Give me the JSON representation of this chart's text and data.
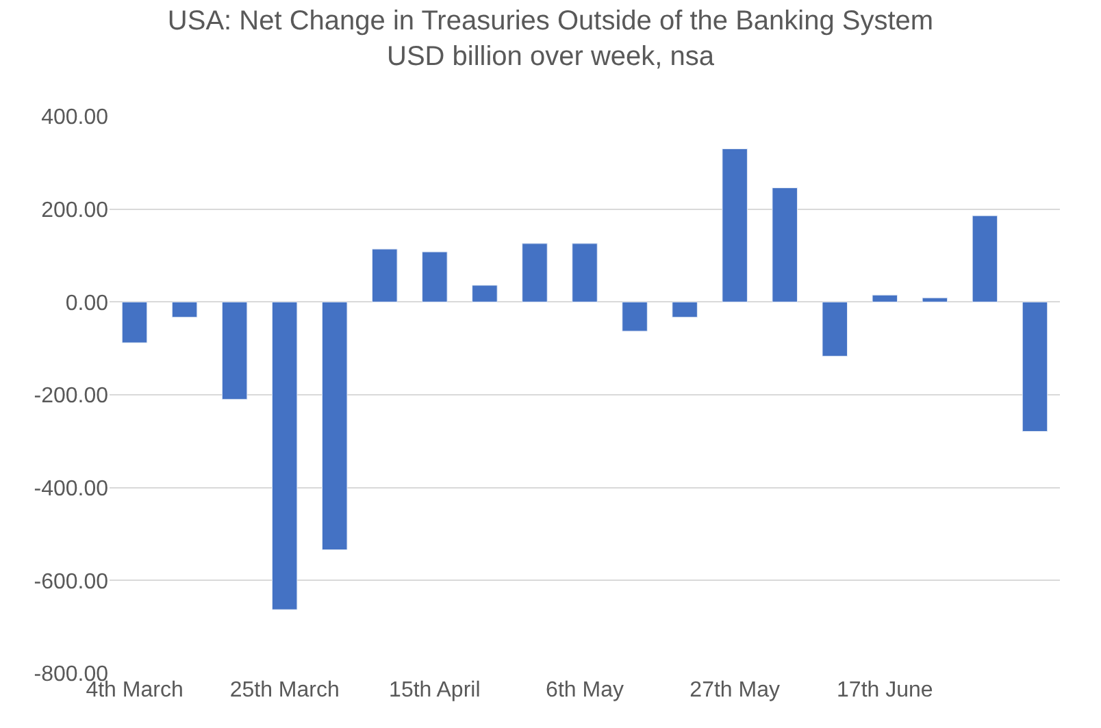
{
  "chart_data": {
    "type": "bar",
    "title": "USA: Net Change in Treasuries Outside of the Banking System",
    "subtitle": "USD billion over week, nsa",
    "categories": [
      "4th March",
      null,
      null,
      "25th March",
      null,
      null,
      "15th April",
      null,
      null,
      "6th May",
      null,
      null,
      "27th May",
      null,
      null,
      "17th June",
      null,
      null,
      null
    ],
    "series": [
      {
        "color": "#4472c4",
        "values": [
          -88,
          -33,
          -210,
          -663,
          -534,
          114,
          108,
          36,
          126,
          126,
          -63,
          -33,
          330,
          246,
          -117,
          15,
          9,
          186,
          -279
        ]
      }
    ],
    "ylim": [
      -800,
      400
    ],
    "yticks": [
      {
        "value": -800,
        "label": "-800.00"
      },
      {
        "value": -600,
        "label": "-600.00"
      },
      {
        "value": -400,
        "label": "-400.00"
      },
      {
        "value": -200,
        "label": "-200.00"
      },
      {
        "value": 0,
        "label": "0.00"
      },
      {
        "value": 200,
        "label": "200.00"
      },
      {
        "value": 400,
        "label": "400.00"
      }
    ],
    "grid": "y"
  }
}
